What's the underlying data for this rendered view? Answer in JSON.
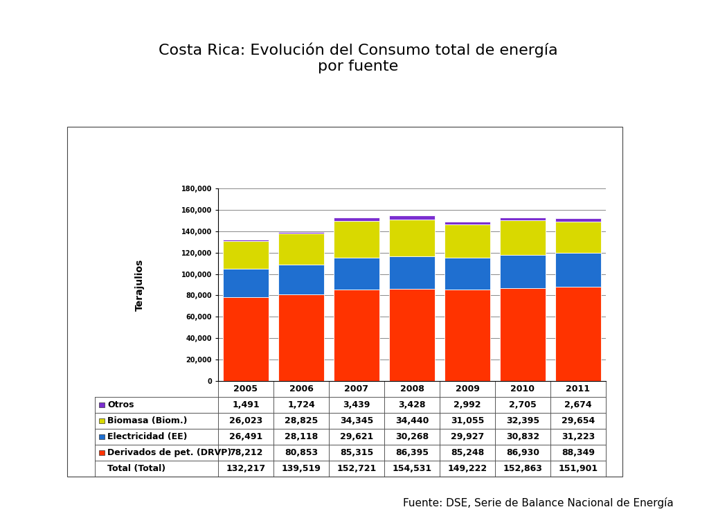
{
  "chart_data": {
    "type": "bar",
    "title": "Costa Rica: Evolución del Consumo total de energía\npor fuente",
    "y_label": "Terajulios",
    "source": "Fuente: DSE, Serie de Balance Nacional de Energía",
    "categories": [
      "2005",
      "2006",
      "2007",
      "2008",
      "2009",
      "2010",
      "2011"
    ],
    "stacked": true,
    "grid": true,
    "ylim": [
      0,
      180000
    ],
    "yticks": [
      0,
      {
        "value": 20000,
        "label": "20,000"
      },
      {
        "value": 40000,
        "label": "40,000"
      },
      {
        "value": 60000,
        "label": "60,000"
      },
      {
        "value": 80000,
        "label": "80,000"
      },
      {
        "value": 100000,
        "label": "100,000"
      },
      {
        "value": 120000,
        "label": "120,000"
      },
      {
        "value": 140000,
        "label": "140,000"
      },
      {
        "value": 160000,
        "label": "160,000"
      },
      {
        "value": 180000,
        "label": "180,000"
      }
    ],
    "series": [
      {
        "name": "Derivados de pet. (DRVP)",
        "color": "#ff3300",
        "values": [
          78212,
          80853,
          85315,
          86395,
          85248,
          86930,
          88349
        ],
        "value_labels": [
          "78,212",
          "80,853",
          "85,315",
          "86,395",
          "85,248",
          "86,930",
          "88,349"
        ]
      },
      {
        "name": "Electricidad (EE)",
        "color": "#1f6fd0",
        "values": [
          26491,
          28118,
          29621,
          30268,
          29927,
          30832,
          31223
        ],
        "value_labels": [
          "26,491",
          "28,118",
          "29,621",
          "30,268",
          "29,927",
          "30,832",
          "31,223"
        ]
      },
      {
        "name": "Biomasa (Biom.)",
        "color": "#d9d900",
        "values": [
          26023,
          28825,
          34345,
          34440,
          31055,
          32395,
          29654
        ],
        "value_labels": [
          "26,023",
          "28,825",
          "34,345",
          "34,440",
          "31,055",
          "32,395",
          "29,654"
        ]
      },
      {
        "name": "Otros",
        "color": "#7b2fd0",
        "values": [
          1491,
          1724,
          3439,
          3428,
          2992,
          2705,
          2674
        ],
        "value_labels": [
          "1,491",
          "1,724",
          "3,439",
          "3,428",
          "2,992",
          "2,705",
          "2,674"
        ]
      }
    ],
    "total": {
      "name": "Total (Total)",
      "values": [
        132217,
        139519,
        152721,
        154531,
        149222,
        152863,
        151901
      ],
      "value_labels": [
        "132,217",
        "139,519",
        "152,721",
        "154,531",
        "149,222",
        "152,863",
        "151,901"
      ]
    }
  }
}
